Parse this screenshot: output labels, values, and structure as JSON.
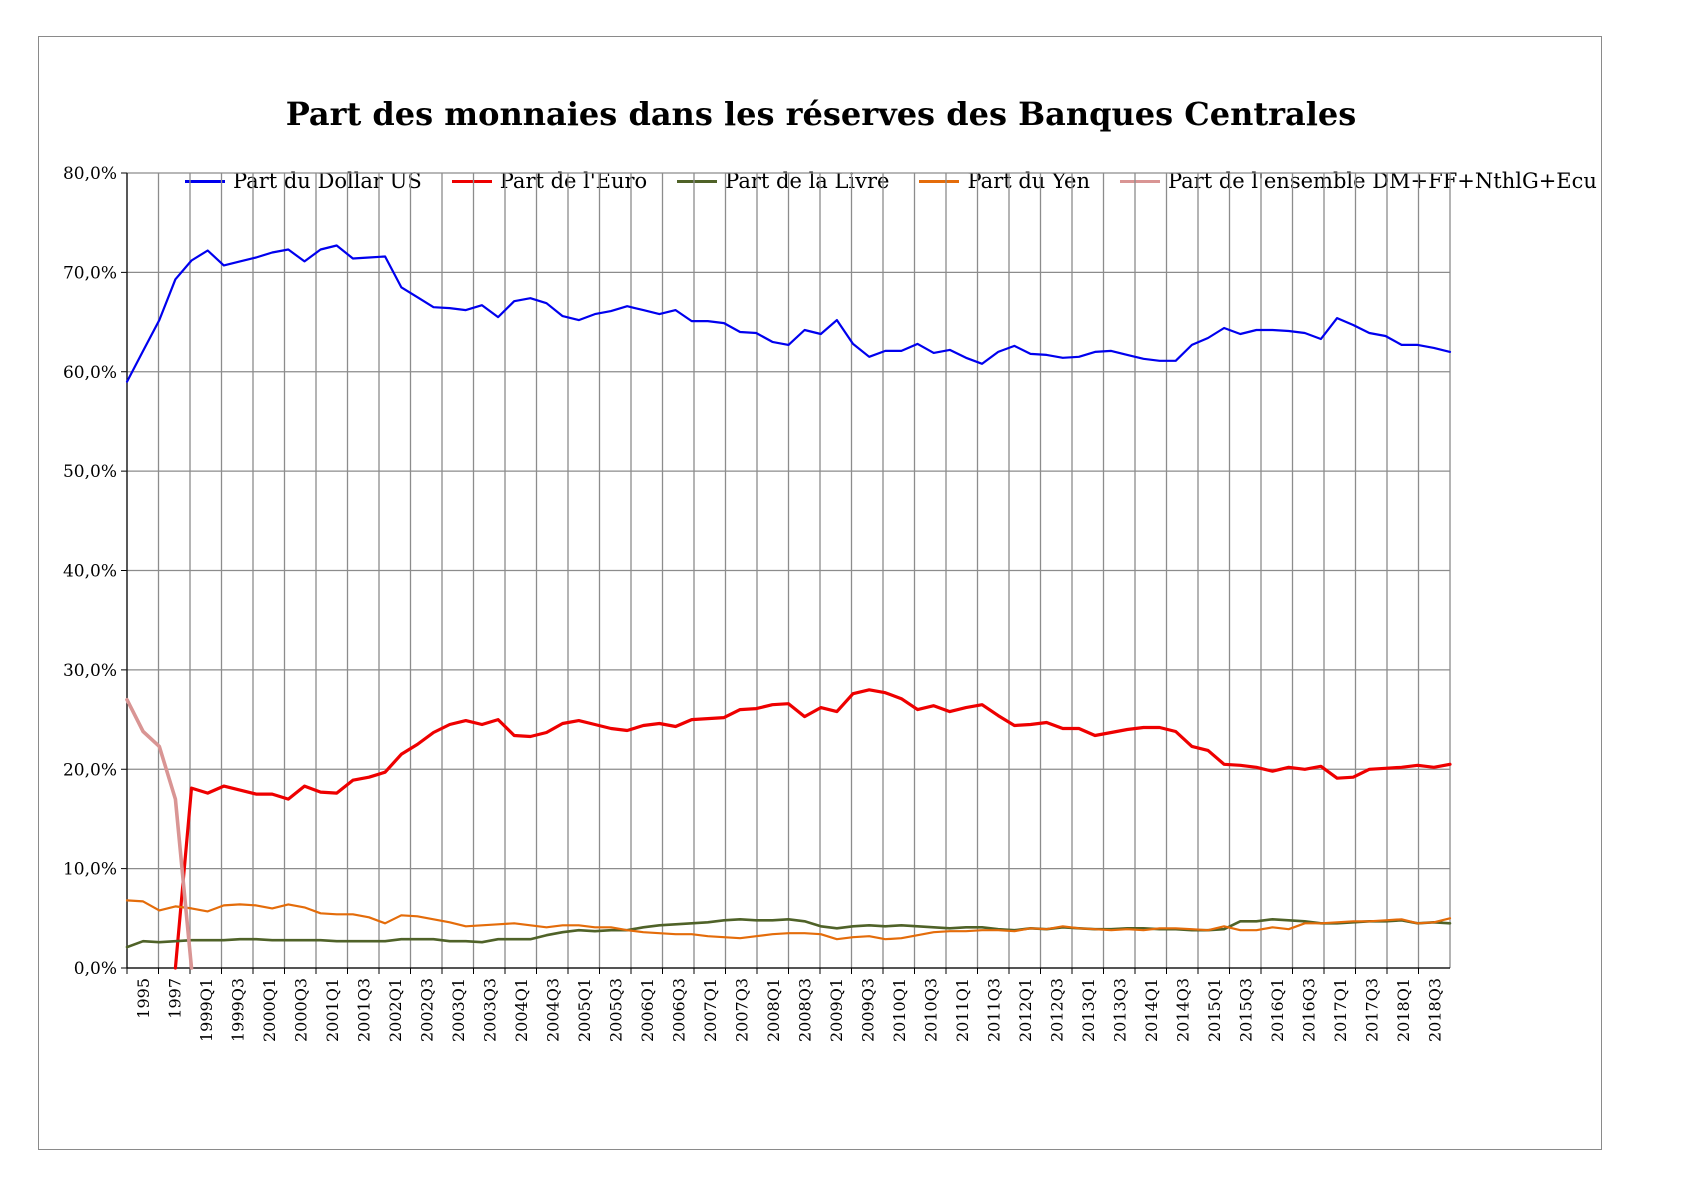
{
  "chart_data": {
    "type": "line",
    "title": "Part des monnaies dans les réserves des Banques Centrales",
    "legend_position": "top",
    "grid": true,
    "ylim": [
      0,
      80
    ],
    "y_ticks": [
      "0,0%",
      "10,0%",
      "20,0%",
      "30,0%",
      "40,0%",
      "50,0%",
      "60,0%",
      "70,0%",
      "80,0%"
    ],
    "x_ticks": [
      "1995",
      "1997",
      "1999Q1",
      "1999Q3",
      "2000Q1",
      "2000Q3",
      "2001Q1",
      "2001Q3",
      "2002Q1",
      "2002Q3",
      "2003Q1",
      "2003Q3",
      "2004Q1",
      "2004Q3",
      "2005Q1",
      "2005Q3",
      "2006Q1",
      "2006Q3",
      "2007Q1",
      "2007Q3",
      "2008Q1",
      "2008Q3",
      "2009Q1",
      "2009Q3",
      "2010Q1",
      "2010Q3",
      "2011Q1",
      "2011Q3",
      "2012Q1",
      "2012Q3",
      "2013Q1",
      "2013Q3",
      "2014Q1",
      "2014Q3",
      "2015Q1",
      "2015Q3",
      "2016Q1",
      "2016Q3",
      "2017Q1",
      "2017Q3",
      "2018Q1",
      "2018Q3"
    ],
    "series": [
      {
        "name": "Part du Dollar US",
        "color": "#0000ee",
        "values": [
          59.0,
          62.1,
          65.2,
          69.3,
          71.2,
          72.2,
          70.7,
          71.1,
          71.5,
          72.0,
          72.3,
          71.1,
          72.3,
          72.7,
          71.4,
          71.5,
          71.6,
          68.5,
          67.5,
          66.5,
          66.4,
          66.2,
          66.7,
          65.5,
          67.1,
          67.4,
          66.9,
          65.6,
          65.2,
          65.8,
          66.1,
          66.6,
          66.2,
          65.8,
          66.2,
          65.1,
          65.1,
          64.9,
          64.0,
          63.9,
          63.0,
          62.7,
          64.2,
          63.8,
          65.2,
          62.8,
          61.5,
          62.1,
          62.1,
          62.8,
          61.9,
          62.2,
          61.4,
          60.8,
          62.0,
          62.6,
          61.8,
          61.7,
          61.4,
          61.5,
          62.0,
          62.1,
          61.7,
          61.3,
          61.1,
          61.1,
          62.7,
          63.4,
          64.4,
          63.8,
          64.2,
          64.2,
          64.1,
          63.9,
          63.3,
          65.4,
          64.7,
          63.9,
          63.6,
          62.7,
          62.7,
          62.4,
          62.0
        ]
      },
      {
        "name": "Part de l'Euro",
        "color": "#ee0000",
        "values": [
          null,
          null,
          null,
          0,
          18.1,
          17.6,
          18.3,
          17.9,
          17.5,
          17.5,
          17.0,
          18.3,
          17.7,
          17.6,
          18.9,
          19.2,
          19.7,
          21.5,
          22.5,
          23.7,
          24.5,
          24.9,
          24.5,
          25.0,
          23.4,
          23.3,
          23.7,
          24.6,
          24.9,
          24.5,
          24.1,
          23.9,
          24.4,
          24.6,
          24.3,
          25.0,
          25.1,
          25.2,
          26.0,
          26.1,
          26.5,
          26.6,
          25.3,
          26.2,
          25.8,
          27.6,
          28.0,
          27.7,
          27.1,
          26.0,
          26.4,
          25.8,
          26.2,
          26.5,
          25.4,
          24.4,
          24.5,
          24.7,
          24.1,
          24.1,
          23.4,
          23.7,
          24.0,
          24.2,
          24.2,
          23.8,
          22.3,
          21.9,
          20.5,
          20.4,
          20.2,
          19.8,
          20.2,
          20.0,
          20.3,
          19.1,
          19.2,
          20.0,
          20.1,
          20.2,
          20.4,
          20.2,
          20.5
        ]
      },
      {
        "name": "Part de la Livre",
        "color": "#4f6228",
        "values": [
          2.1,
          2.7,
          2.6,
          2.7,
          2.8,
          2.8,
          2.8,
          2.9,
          2.9,
          2.8,
          2.8,
          2.8,
          2.8,
          2.7,
          2.7,
          2.7,
          2.7,
          2.9,
          2.9,
          2.9,
          2.7,
          2.7,
          2.6,
          2.9,
          2.9,
          2.9,
          3.3,
          3.6,
          3.8,
          3.7,
          3.8,
          3.8,
          4.1,
          4.3,
          4.4,
          4.5,
          4.6,
          4.8,
          4.9,
          4.8,
          4.8,
          4.9,
          4.7,
          4.2,
          4.0,
          4.2,
          4.3,
          4.2,
          4.3,
          4.2,
          4.1,
          4.0,
          4.1,
          4.1,
          3.9,
          3.8,
          4.0,
          3.9,
          4.1,
          4.0,
          3.9,
          3.9,
          4.0,
          4.0,
          3.9,
          3.9,
          3.8,
          3.8,
          3.9,
          4.7,
          4.7,
          4.9,
          4.8,
          4.7,
          4.5,
          4.5,
          4.6,
          4.7,
          4.7,
          4.8,
          4.5,
          4.6,
          4.5
        ]
      },
      {
        "name": "Part du Yen",
        "color": "#e46c0a",
        "values": [
          6.8,
          6.7,
          5.8,
          6.2,
          6.0,
          5.7,
          6.3,
          6.4,
          6.3,
          6.0,
          6.4,
          6.1,
          5.5,
          5.4,
          5.4,
          5.1,
          4.5,
          5.3,
          5.2,
          4.9,
          4.6,
          4.2,
          4.3,
          4.4,
          4.5,
          4.3,
          4.1,
          4.3,
          4.3,
          4.1,
          4.1,
          3.8,
          3.6,
          3.5,
          3.4,
          3.4,
          3.2,
          3.1,
          3.0,
          3.2,
          3.4,
          3.5,
          3.5,
          3.4,
          2.9,
          3.1,
          3.2,
          2.9,
          3.0,
          3.3,
          3.6,
          3.7,
          3.7,
          3.8,
          3.8,
          3.7,
          4.0,
          3.9,
          4.2,
          4.0,
          3.9,
          3.8,
          3.9,
          3.8,
          4.0,
          4.0,
          3.9,
          3.8,
          4.2,
          3.8,
          3.8,
          4.1,
          3.9,
          4.5,
          4.5,
          4.6,
          4.7,
          4.7,
          4.8,
          4.9,
          4.5,
          4.6,
          5.0
        ]
      },
      {
        "name": "Part de l'ensemble DM+FF+NthlG+Ecu",
        "color": "#d99594",
        "values": [
          27.0,
          23.8,
          22.3,
          17.0,
          0
        ]
      }
    ]
  }
}
